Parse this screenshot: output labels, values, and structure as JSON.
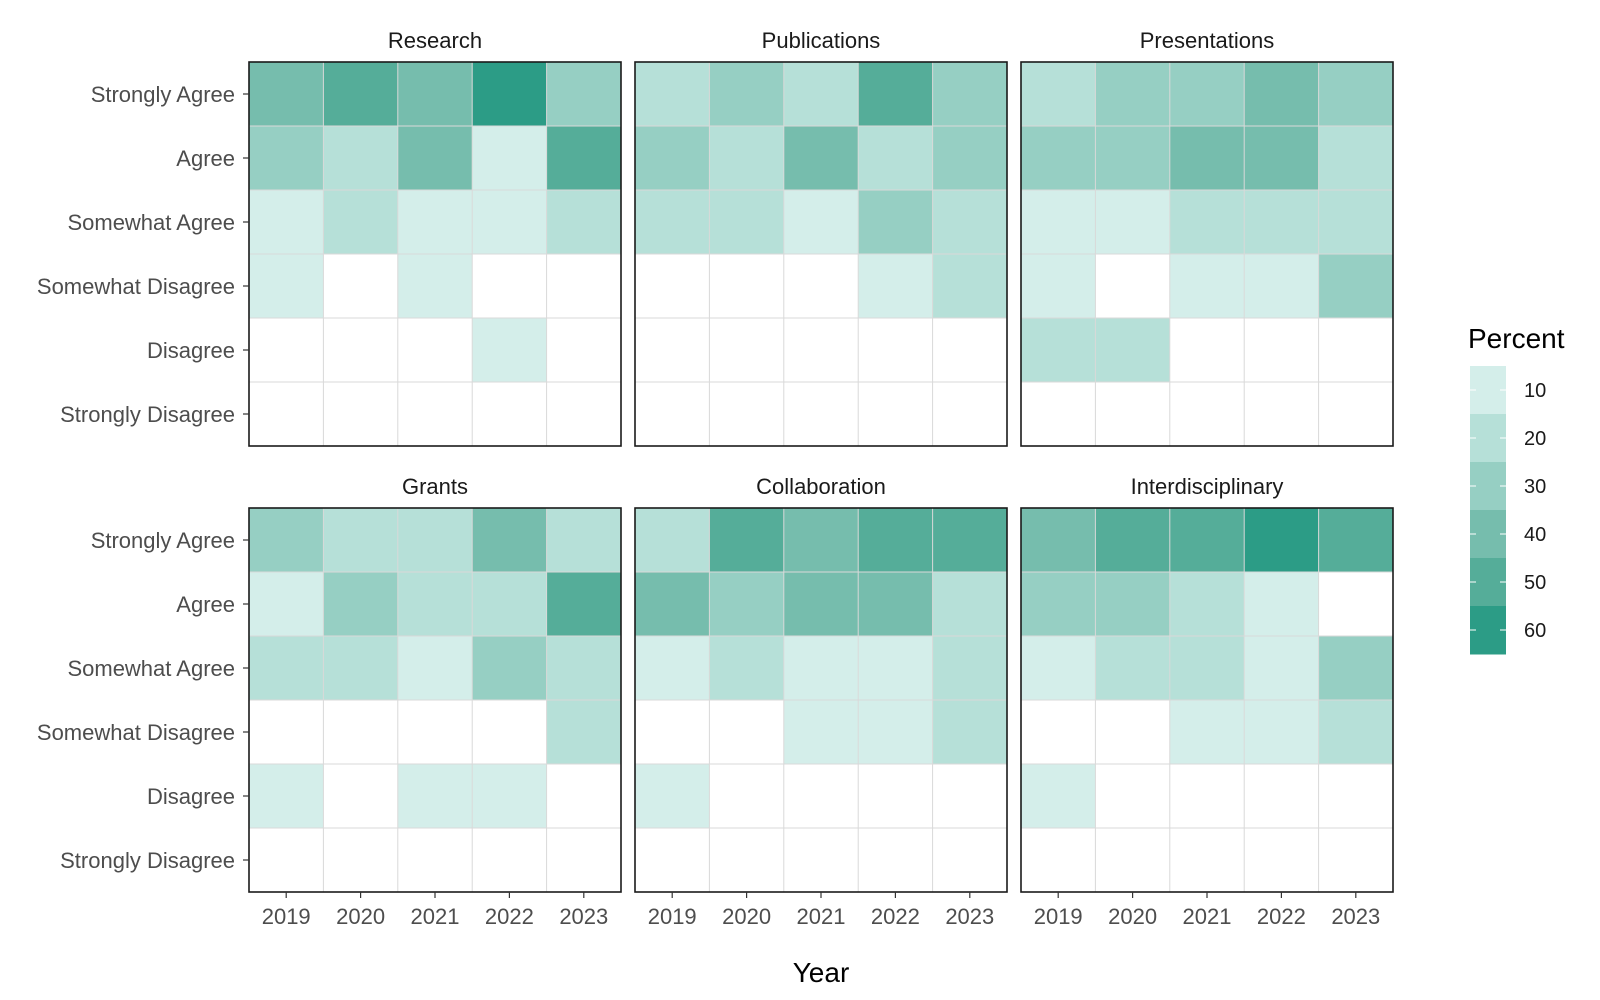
{
  "chart_data": {
    "type": "heatmap",
    "xlabel": "Year",
    "ylabel": "",
    "x_categories": [
      "2019",
      "2020",
      "2021",
      "2022",
      "2023"
    ],
    "y_categories": [
      "Strongly Agree",
      "Agree",
      "Somewhat Agree",
      "Somewhat Disagree",
      "Disagree",
      "Strongly Disagree"
    ],
    "legend": {
      "title": "Percent",
      "position": "right",
      "ticks": [
        10,
        20,
        30,
        40,
        50,
        60
      ],
      "colors": [
        "#d4eeea",
        "#b6e0d8",
        "#96cfc3",
        "#76bdad",
        "#55ad99",
        "#2c9c86"
      ]
    },
    "grid": true,
    "panels": [
      {
        "title": "Research",
        "values": [
          [
            40,
            50,
            40,
            60,
            30
          ],
          [
            30,
            20,
            40,
            10,
            50
          ],
          [
            10,
            20,
            10,
            10,
            20
          ],
          [
            10,
            null,
            10,
            null,
            null
          ],
          [
            null,
            null,
            null,
            10,
            null
          ],
          [
            null,
            null,
            null,
            null,
            null
          ]
        ]
      },
      {
        "title": "Publications",
        "values": [
          [
            20,
            30,
            20,
            50,
            30
          ],
          [
            30,
            20,
            40,
            20,
            30
          ],
          [
            20,
            20,
            10,
            30,
            20
          ],
          [
            null,
            null,
            null,
            10,
            20
          ],
          [
            null,
            null,
            null,
            null,
            null
          ],
          [
            null,
            null,
            null,
            null,
            null
          ]
        ]
      },
      {
        "title": "Presentations",
        "values": [
          [
            20,
            30,
            30,
            40,
            30
          ],
          [
            30,
            30,
            40,
            40,
            20
          ],
          [
            10,
            10,
            20,
            20,
            20
          ],
          [
            10,
            null,
            10,
            10,
            30
          ],
          [
            20,
            20,
            null,
            null,
            null
          ],
          [
            null,
            null,
            null,
            null,
            null
          ]
        ]
      },
      {
        "title": "Grants",
        "values": [
          [
            30,
            20,
            20,
            40,
            20
          ],
          [
            10,
            30,
            20,
            20,
            50
          ],
          [
            20,
            20,
            10,
            30,
            20
          ],
          [
            null,
            null,
            null,
            null,
            20
          ],
          [
            10,
            null,
            10,
            10,
            null
          ],
          [
            null,
            null,
            null,
            null,
            null
          ]
        ]
      },
      {
        "title": "Collaboration",
        "values": [
          [
            20,
            50,
            40,
            50,
            50
          ],
          [
            40,
            30,
            40,
            40,
            20
          ],
          [
            10,
            20,
            10,
            10,
            20
          ],
          [
            null,
            null,
            10,
            10,
            20
          ],
          [
            10,
            null,
            null,
            null,
            null
          ],
          [
            null,
            null,
            null,
            null,
            null
          ]
        ]
      },
      {
        "title": "Interdisciplinary",
        "values": [
          [
            40,
            50,
            50,
            60,
            50
          ],
          [
            30,
            30,
            20,
            10,
            null
          ],
          [
            10,
            20,
            20,
            10,
            30
          ],
          [
            null,
            null,
            10,
            10,
            20
          ],
          [
            10,
            null,
            null,
            null,
            null
          ],
          [
            null,
            null,
            null,
            null,
            null
          ]
        ]
      }
    ]
  }
}
